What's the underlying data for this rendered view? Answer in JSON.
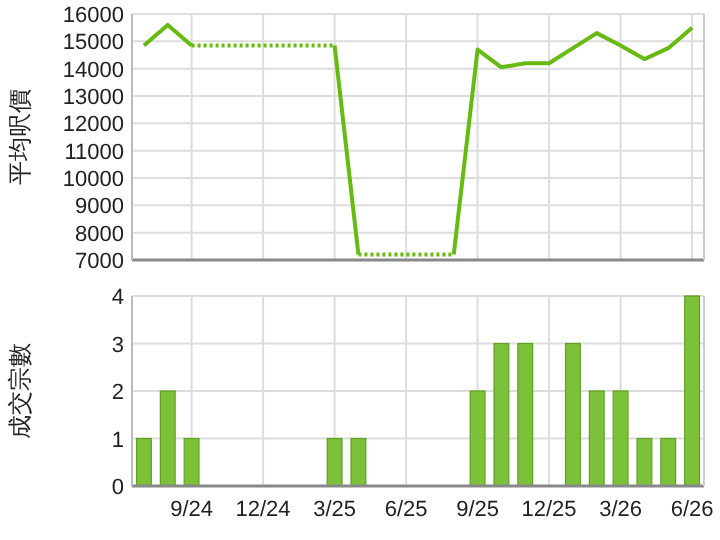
{
  "chart_data": [
    {
      "type": "line",
      "ylabel": "平均呎價",
      "categories": [
        null,
        null,
        null,
        null,
        null,
        null,
        null,
        null,
        null,
        null,
        null,
        null,
        null,
        null,
        null,
        null,
        null,
        null,
        null,
        null,
        null,
        null,
        null,
        null
      ],
      "ylim": [
        7000,
        16000
      ],
      "yticks": [
        7000,
        8000,
        9000,
        10000,
        11000,
        12000,
        13000,
        14000,
        15000,
        16000
      ],
      "grid": true,
      "tick_labels": "y",
      "series": [
        {
          "color": "#66bb11",
          "values": [
            14850,
            15600,
            14850,
            null,
            null,
            null,
            null,
            null,
            14850,
            7200,
            null,
            null,
            null,
            7200,
            14700,
            14050,
            14200,
            14200,
            14750,
            15300,
            14850,
            14350,
            14750,
            15500
          ]
        }
      ]
    },
    {
      "type": "bar",
      "ylabel": "成交宗數",
      "categories": [
        null,
        null,
        "9/24",
        null,
        null,
        "12/24",
        null,
        null,
        "3/25",
        null,
        null,
        "6/25",
        null,
        null,
        "9/25",
        null,
        null,
        "12/25",
        null,
        null,
        "3/26",
        null,
        null,
        "6/26"
      ],
      "ylim": [
        0,
        4
      ],
      "yticks": [
        0,
        1,
        2,
        3,
        4
      ],
      "grid": true,
      "color": "#7cc13a",
      "values": [
        1,
        2,
        1,
        0,
        0,
        0,
        0,
        0,
        1,
        1,
        0,
        0,
        0,
        0,
        2,
        3,
        3,
        0,
        3,
        2,
        2,
        1,
        1,
        4
      ]
    }
  ]
}
